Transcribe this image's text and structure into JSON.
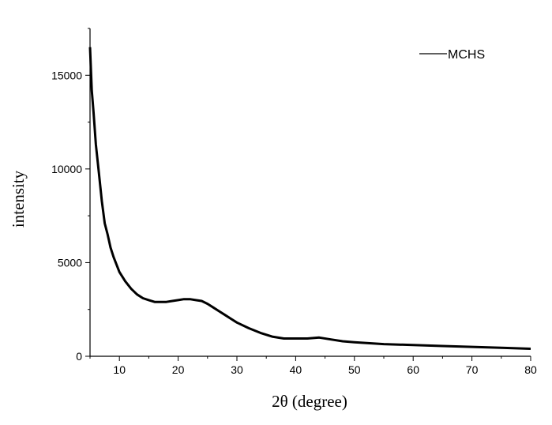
{
  "chart_data": {
    "type": "line",
    "title": "",
    "xlabel": "2θ (degree)",
    "ylabel": "intensity",
    "xlim": [
      5,
      80
    ],
    "ylim": [
      0,
      17500
    ],
    "x_ticks": [
      10,
      20,
      30,
      40,
      50,
      60,
      70,
      80
    ],
    "y_ticks": [
      0,
      5000,
      10000,
      15000
    ],
    "grid": false,
    "legend_position": "top-right",
    "line_color": "#000000",
    "series": [
      {
        "name": "MCHS",
        "x": [
          5,
          5.3,
          5.6,
          6,
          6.5,
          7,
          7.5,
          8,
          8.5,
          9,
          9.5,
          10,
          11,
          12,
          13,
          14,
          15,
          16,
          17,
          18,
          19,
          20,
          21,
          22,
          23,
          24,
          25,
          26,
          27,
          28,
          29,
          30,
          32,
          34,
          36,
          38,
          40,
          42,
          44,
          46,
          48,
          50,
          55,
          60,
          65,
          70,
          75,
          80
        ],
        "y": [
          16500,
          14200,
          13000,
          11300,
          9800,
          8300,
          7100,
          6500,
          5800,
          5300,
          4900,
          4500,
          4000,
          3600,
          3300,
          3100,
          3000,
          2900,
          2900,
          2900,
          2950,
          3000,
          3050,
          3050,
          3000,
          2950,
          2800,
          2600,
          2400,
          2200,
          2000,
          1800,
          1500,
          1250,
          1050,
          950,
          950,
          950,
          1000,
          900,
          800,
          750,
          650,
          600,
          550,
          500,
          450,
          400
        ]
      }
    ]
  }
}
